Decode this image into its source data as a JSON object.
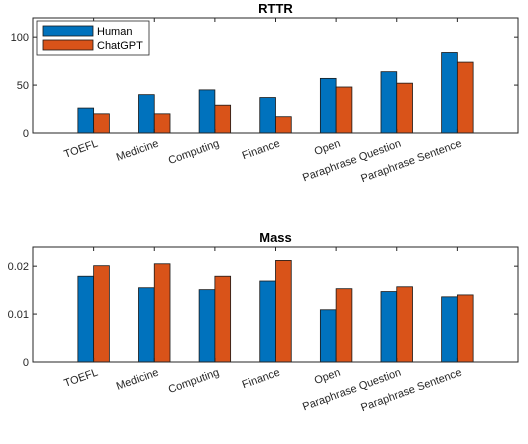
{
  "chart_data": [
    {
      "type": "bar",
      "title": "RTTR",
      "categories": [
        "TOEFL",
        "Medicine",
        "Computing",
        "Finance",
        "Open",
        "Paraphrase Question",
        "Paraphrase Sentence"
      ],
      "series": [
        {
          "name": "Human",
          "color": "#0072BD",
          "values": [
            26,
            40,
            45,
            37,
            57,
            64,
            84
          ]
        },
        {
          "name": "ChatGPT",
          "color": "#D95319",
          "values": [
            20,
            20,
            29,
            17,
            48,
            52,
            74
          ]
        }
      ],
      "ylim": [
        0,
        120
      ],
      "yticks": [
        "0",
        "50",
        "100"
      ],
      "ytick_values": [
        0,
        50,
        100
      ],
      "legend": "top-left",
      "grid": false
    },
    {
      "type": "bar",
      "title": "Mass",
      "categories": [
        "TOEFL",
        "Medicine",
        "Computing",
        "Finance",
        "Open",
        "Paraphrase Question",
        "Paraphrase Sentence"
      ],
      "series": [
        {
          "name": "Human",
          "color": "#0072BD",
          "values": [
            0.0179,
            0.0155,
            0.0151,
            0.0169,
            0.0109,
            0.0147,
            0.0136
          ]
        },
        {
          "name": "ChatGPT",
          "color": "#D95319",
          "values": [
            0.0201,
            0.0205,
            0.0179,
            0.0212,
            0.0153,
            0.0157,
            0.014
          ]
        }
      ],
      "ylim": [
        0,
        0.024
      ],
      "yticks": [
        "0",
        "0.01",
        "0.02"
      ],
      "ytick_values": [
        0,
        0.01,
        0.02
      ],
      "grid": false
    }
  ]
}
